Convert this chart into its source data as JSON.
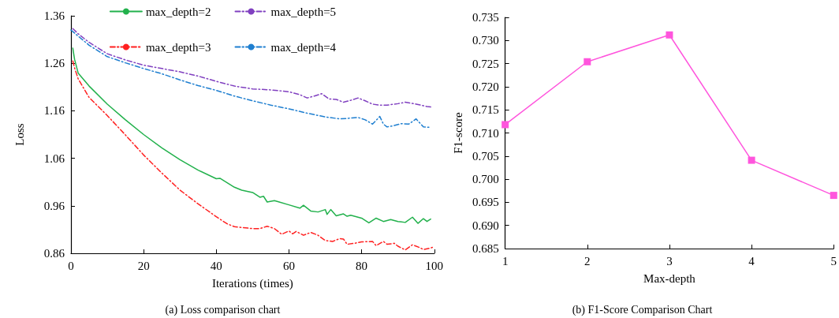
{
  "chart_data": [
    {
      "type": "line",
      "xlabel": "Iterations (times)",
      "ylabel": "Loss",
      "annotations": [
        "(a) Loss comparison chart"
      ],
      "xlim": [
        0,
        100
      ],
      "xticks": [
        0,
        20,
        40,
        60,
        80,
        100
      ],
      "ylim": [
        0.86,
        1.36
      ],
      "yticks": [
        0.86,
        0.96,
        1.06,
        1.16,
        1.26,
        1.36
      ],
      "grid": false,
      "legend": "top",
      "marker": "none",
      "series": [
        {
          "name": "max_depth=2",
          "color": "#22b14c",
          "line_style": "solid",
          "x": [
            0.5,
            1,
            2,
            5,
            10,
            15,
            20,
            25,
            30,
            35,
            40,
            41,
            45,
            47,
            50,
            52,
            53,
            54,
            56,
            60,
            63,
            64,
            66,
            68,
            70,
            70.5,
            71.5,
            73,
            75,
            76,
            77,
            80,
            82,
            84,
            86,
            88,
            90,
            92,
            94,
            95.5,
            97,
            98,
            99
          ],
          "values": [
            1.292,
            1.268,
            1.239,
            1.212,
            1.174,
            1.141,
            1.11,
            1.082,
            1.057,
            1.035,
            1.017,
            1.018,
            0.999,
            0.993,
            0.988,
            0.978,
            0.98,
            0.968,
            0.971,
            0.962,
            0.955,
            0.961,
            0.949,
            0.947,
            0.952,
            0.942,
            0.952,
            0.939,
            0.943,
            0.938,
            0.94,
            0.934,
            0.924,
            0.934,
            0.927,
            0.931,
            0.927,
            0.925,
            0.936,
            0.923,
            0.933,
            0.927,
            0.932
          ]
        },
        {
          "name": "max_depth=5",
          "color": "#8040c0",
          "line_style": "dashed",
          "x": [
            0.5,
            2,
            5,
            10,
            15,
            20,
            25,
            30,
            35,
            40,
            45,
            50,
            55,
            60,
            63,
            65,
            67,
            69,
            71,
            73,
            75,
            77,
            79,
            81,
            83,
            85,
            87,
            90,
            92,
            95,
            98,
            99
          ],
          "values": [
            1.333,
            1.322,
            1.304,
            1.28,
            1.267,
            1.256,
            1.249,
            1.242,
            1.233,
            1.222,
            1.212,
            1.206,
            1.204,
            1.2,
            1.194,
            1.187,
            1.191,
            1.196,
            1.185,
            1.184,
            1.178,
            1.182,
            1.187,
            1.181,
            1.174,
            1.172,
            1.172,
            1.175,
            1.178,
            1.174,
            1.169,
            1.168
          ]
        },
        {
          "name": "max_depth=3",
          "color": "#ff2020",
          "line_style": "dashed",
          "x": [
            0.5,
            1,
            2,
            5,
            10,
            15,
            20,
            25,
            30,
            35,
            40,
            43,
            45,
            50,
            52,
            54,
            56,
            58,
            60,
            61,
            62,
            64,
            66,
            68,
            70,
            72,
            74,
            75,
            76,
            78,
            80,
            83,
            84,
            86,
            87,
            89,
            90,
            92,
            94,
            96,
            97,
            99,
            100
          ],
          "values": [
            1.265,
            1.25,
            1.227,
            1.188,
            1.15,
            1.109,
            1.067,
            1.029,
            0.993,
            0.964,
            0.937,
            0.922,
            0.916,
            0.912,
            0.912,
            0.917,
            0.912,
            0.9,
            0.907,
            0.901,
            0.906,
            0.898,
            0.904,
            0.898,
            0.887,
            0.885,
            0.891,
            0.89,
            0.879,
            0.881,
            0.884,
            0.885,
            0.876,
            0.885,
            0.879,
            0.881,
            0.875,
            0.867,
            0.878,
            0.872,
            0.868,
            0.871,
            0.874
          ]
        },
        {
          "name": "max_depth=4",
          "color": "#1f7fd0",
          "line_style": "dashed",
          "x": [
            0,
            2,
            5,
            10,
            15,
            20,
            25,
            30,
            35,
            40,
            45,
            50,
            55,
            60,
            65,
            70,
            74,
            76,
            79,
            81,
            83,
            85,
            86,
            87,
            89,
            91,
            93,
            95,
            97,
            99
          ],
          "values": [
            1.33,
            1.317,
            1.298,
            1.274,
            1.261,
            1.249,
            1.238,
            1.225,
            1.213,
            1.203,
            1.191,
            1.181,
            1.172,
            1.164,
            1.155,
            1.147,
            1.143,
            1.144,
            1.146,
            1.141,
            1.132,
            1.148,
            1.132,
            1.126,
            1.129,
            1.133,
            1.132,
            1.143,
            1.126,
            1.125
          ]
        }
      ]
    },
    {
      "type": "line",
      "xlabel": "Max-depth",
      "ylabel": "F1-score",
      "annotations": [
        "(b) F1-Score Comparison Chart"
      ],
      "x": [
        1,
        2,
        3,
        4,
        5
      ],
      "xlim": [
        1,
        5
      ],
      "xticks": [
        1,
        2,
        3,
        4,
        5
      ],
      "ylim": [
        0.685,
        0.735
      ],
      "yticks": [
        0.685,
        {
          "value": 0.69,
          "label": "0.690"
        },
        0.695,
        {
          "value": 0.7,
          "label": "0.700"
        },
        0.705,
        {
          "value": 0.71,
          "label": "0.710"
        },
        0.715,
        {
          "value": 0.72,
          "label": "0.720"
        },
        0.725,
        {
          "value": 0.73,
          "label": "0.730"
        },
        0.735
      ],
      "grid": false,
      "legend": false,
      "marker": "square",
      "line_style": "solid",
      "series": [
        {
          "color": "#ff55dd",
          "values": [
            0.7118,
            0.7254,
            0.7312,
            0.7041,
            0.6965
          ]
        }
      ]
    }
  ]
}
